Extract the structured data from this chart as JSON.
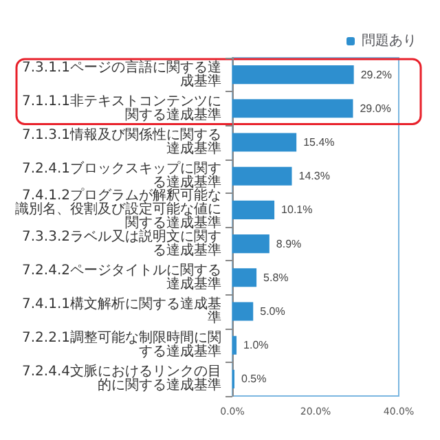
{
  "chart_data": {
    "type": "bar",
    "orientation": "horizontal",
    "categories": [
      "7.3.1.1ページの言語に関する達成基準",
      "7.1.1.1非テキストコンテンツに関する達成基準",
      "7.1.3.1情報及び関係性に関する達成基準",
      "7.2.4.1ブロックスキップに関する達成基準",
      "7.4.1.2プログラムが解釈可能な識別名、役割及び設定可能な値に関する達成基準",
      "7.3.3.2ラベル又は説明文に関する達成基準",
      "7.2.4.2ページタイトルに関する達成基準",
      "7.4.1.1構文解析に関する達成基準",
      "7.2.2.1調整可能な制限時間に関する達成基準",
      "7.2.4.4文脈におけるリンクの目的に関する達成基準"
    ],
    "series": [
      {
        "name": "問題あり",
        "color": "#2e8fcf",
        "values": [
          29.2,
          29.0,
          15.4,
          14.3,
          10.1,
          8.9,
          5.8,
          5.0,
          1.0,
          0.5
        ],
        "value_labels": [
          "29.2%",
          "29.0%",
          "15.4%",
          "14.3%",
          "10.1%",
          "8.9%",
          "5.8%",
          "5.0%",
          "1.0%",
          "0.5%"
        ]
      }
    ],
    "xlim": [
      0,
      40
    ],
    "xticks": [
      {
        "value": 0,
        "label": "0.0%"
      },
      {
        "value": 20,
        "label": "20.0%"
      },
      {
        "value": 40,
        "label": "40.0%"
      }
    ],
    "legend": "top right",
    "grid": false
  }
}
